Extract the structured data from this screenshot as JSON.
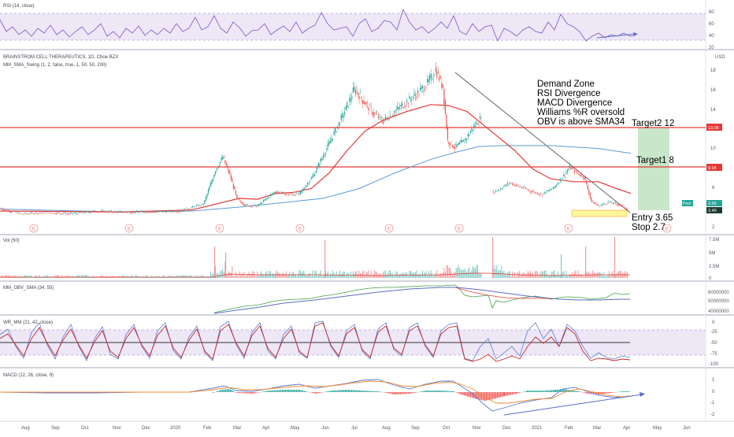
{
  "panels": {
    "rsi": {
      "title": "RSI (14, close)",
      "ticks": [
        "80",
        "60",
        "40",
        "20"
      ]
    },
    "main": {
      "title": "BRAINSTROM CELL THERAPEUTICS, 1D, Cboe BZX",
      "indicator": "MM_SMA_Swing (1, 2, false, true, 1, 50, 50, 200)",
      "currency": "USD",
      "ticks": [
        "18",
        "16",
        "14",
        "12",
        "10",
        "8",
        "6",
        "4",
        "2"
      ],
      "price_tags": {
        "r1": "13.06",
        "r2": "8.04",
        "post_label": "Post",
        "post": "3.65",
        "last": "3.49"
      }
    },
    "vol": {
      "title": "Vol (50)",
      "ticks": [
        "7.5M",
        "5M",
        "2.5M",
        "0"
      ]
    },
    "obv": {
      "title": "MM_OBV_SMA (34, 55)",
      "ticks": [
        "60000000",
        "50000000",
        "40000000"
      ]
    },
    "wr": {
      "title": "WR_MM (21, 42, close)",
      "ticks": [
        "0",
        "-25",
        "-50",
        "-75",
        "-100"
      ]
    },
    "macd": {
      "title": "MACD (12, 26, close, 9)",
      "ticks": [
        "1",
        "0",
        "-1",
        "-2"
      ]
    }
  },
  "annotations": {
    "notes": [
      "Demand Zone",
      "RSI Divergence",
      "MACD Divergence",
      "Williams %R oversold",
      "OBV is above SMA34"
    ],
    "target2": "Target2 12",
    "target1": "Target1 8",
    "entry": "Entry 3.65",
    "stop": "Stop 2.7",
    "earnings_marker": "E"
  },
  "x_axis": [
    "Aug",
    "Sep",
    "Oct",
    "Nov",
    "Dec",
    "2020",
    "Feb",
    "Mar",
    "Apr",
    "May",
    "Jun",
    "Jul",
    "Aug",
    "Sep",
    "Oct",
    "Nov",
    "Dec",
    "2021",
    "Feb",
    "Mar",
    "Apr",
    "May",
    "Jun"
  ],
  "colors": {
    "up": "#26a69a",
    "down": "#ef5350",
    "resistance": "#e53935",
    "sma_red": "#e53935",
    "sma_blue": "#5b9bd5",
    "rsi_line": "#7e57c2",
    "rsi_band": "#ede7f6",
    "target_zone": "#c8e6c9",
    "demand_zone": "#fff59d",
    "trend": "#555555",
    "divergence": "#5a6cc8"
  },
  "chart_data": {
    "type": "candlestick",
    "title": "BRAINSTROM CELL THERAPEUTICS, 1D, Cboe BZX",
    "ylabel": "USD",
    "ylim": [
      1.5,
      19.2
    ],
    "horizontal_levels": [
      13.06,
      8.04
    ],
    "last_price": 3.49,
    "post_market": 3.65,
    "entry": 3.65,
    "stop": 2.7,
    "target1": 8,
    "target2": 12,
    "price_path": [
      {
        "x": 0,
        "y": 3.6
      },
      {
        "x": 8,
        "y": 3.3
      },
      {
        "x": 18,
        "y": 3.0
      },
      {
        "x": 30,
        "y": 3.1
      },
      {
        "x": 45,
        "y": 3.1
      },
      {
        "x": 60,
        "y": 3.0
      },
      {
        "x": 80,
        "y": 3.3
      },
      {
        "x": 100,
        "y": 3.2
      },
      {
        "x": 130,
        "y": 3.2
      },
      {
        "x": 150,
        "y": 3.3
      },
      {
        "x": 170,
        "y": 4.0
      },
      {
        "x": 180,
        "y": 7.5
      },
      {
        "x": 186,
        "y": 8.8
      },
      {
        "x": 192,
        "y": 7.0
      },
      {
        "x": 198,
        "y": 4.5
      },
      {
        "x": 205,
        "y": 3.9
      },
      {
        "x": 215,
        "y": 3.8
      },
      {
        "x": 222,
        "y": 4.5
      },
      {
        "x": 230,
        "y": 5.3
      },
      {
        "x": 240,
        "y": 5.0
      },
      {
        "x": 250,
        "y": 5.0
      },
      {
        "x": 262,
        "y": 7.0
      },
      {
        "x": 272,
        "y": 9.5
      },
      {
        "x": 280,
        "y": 11.5
      },
      {
        "x": 288,
        "y": 13.5
      },
      {
        "x": 296,
        "y": 15.8
      },
      {
        "x": 304,
        "y": 14.5
      },
      {
        "x": 312,
        "y": 13.3
      },
      {
        "x": 320,
        "y": 12.5
      },
      {
        "x": 330,
        "y": 13.5
      },
      {
        "x": 340,
        "y": 14.5
      },
      {
        "x": 350,
        "y": 15.5
      },
      {
        "x": 358,
        "y": 16.5
      },
      {
        "x": 364,
        "y": 17.8
      },
      {
        "x": 370,
        "y": 16.0
      },
      {
        "x": 374,
        "y": 10.5
      },
      {
        "x": 380,
        "y": 9.8
      },
      {
        "x": 388,
        "y": 10.5
      },
      {
        "x": 396,
        "y": 12.0
      },
      {
        "x": 403,
        "y": 13.0
      },
      {
        "x": 407,
        "y": null
      },
      {
        "x": 412,
        "y": 5.2
      },
      {
        "x": 418,
        "y": 5.6
      },
      {
        "x": 426,
        "y": 6.2
      },
      {
        "x": 434,
        "y": 5.8
      },
      {
        "x": 444,
        "y": 5.3
      },
      {
        "x": 452,
        "y": 5.0
      },
      {
        "x": 462,
        "y": 5.6
      },
      {
        "x": 470,
        "y": 6.8
      },
      {
        "x": 476,
        "y": 7.8
      },
      {
        "x": 482,
        "y": 7.2
      },
      {
        "x": 488,
        "y": 6.8
      },
      {
        "x": 494,
        "y": 4.3
      },
      {
        "x": 500,
        "y": 3.8
      },
      {
        "x": 508,
        "y": 4.2
      },
      {
        "x": 516,
        "y": 4.0
      },
      {
        "x": 524,
        "y": 3.5
      }
    ],
    "sma_red": [
      {
        "x": 0,
        "y": 3.3
      },
      {
        "x": 100,
        "y": 3.2
      },
      {
        "x": 160,
        "y": 3.4
      },
      {
        "x": 180,
        "y": 4.0
      },
      {
        "x": 200,
        "y": 4.6
      },
      {
        "x": 215,
        "y": 4.5
      },
      {
        "x": 230,
        "y": 5.1
      },
      {
        "x": 245,
        "y": 5.2
      },
      {
        "x": 260,
        "y": 5.6
      },
      {
        "x": 275,
        "y": 7.2
      },
      {
        "x": 290,
        "y": 9.5
      },
      {
        "x": 305,
        "y": 11.5
      },
      {
        "x": 320,
        "y": 12.6
      },
      {
        "x": 340,
        "y": 13.5
      },
      {
        "x": 360,
        "y": 14.2
      },
      {
        "x": 375,
        "y": 14.1
      },
      {
        "x": 390,
        "y": 13.5
      },
      {
        "x": 410,
        "y": 11.5
      },
      {
        "x": 430,
        "y": 9.5
      },
      {
        "x": 445,
        "y": 7.6
      },
      {
        "x": 460,
        "y": 6.6
      },
      {
        "x": 480,
        "y": 6.3
      },
      {
        "x": 500,
        "y": 6.3
      },
      {
        "x": 515,
        "y": 5.6
      },
      {
        "x": 527,
        "y": 5.1
      }
    ],
    "sma_blue": [
      {
        "x": 0,
        "y": 3.5
      },
      {
        "x": 100,
        "y": 3.2
      },
      {
        "x": 160,
        "y": 3.3
      },
      {
        "x": 200,
        "y": 3.7
      },
      {
        "x": 240,
        "y": 4.2
      },
      {
        "x": 270,
        "y": 4.6
      },
      {
        "x": 300,
        "y": 5.6
      },
      {
        "x": 330,
        "y": 7.2
      },
      {
        "x": 360,
        "y": 8.6
      },
      {
        "x": 380,
        "y": 9.3
      },
      {
        "x": 400,
        "y": 9.9
      },
      {
        "x": 420,
        "y": 10.0
      },
      {
        "x": 460,
        "y": 10.0
      },
      {
        "x": 500,
        "y": 9.7
      },
      {
        "x": 527,
        "y": 9.2
      }
    ]
  }
}
